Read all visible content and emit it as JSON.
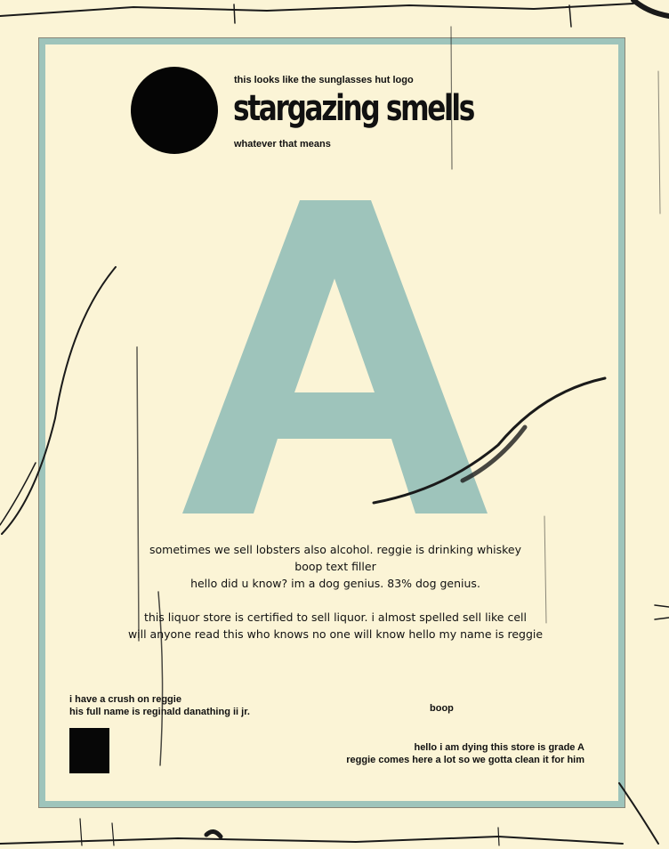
{
  "header": {
    "logo_note": "this looks like the sunglasses hut logo",
    "title": "stargazing smells",
    "subtitle": "whatever that means"
  },
  "big_letter": "A",
  "body": {
    "lines_1": [
      "sometimes we sell lobsters also alcohol. reggie is drinking whiskey",
      "boop text filler",
      "hello did u know? im a dog genius. 83% dog genius."
    ],
    "lines_2": [
      "this liquor store is certified to sell liquor. i almost spelled sell like cell",
      "will anyone read this who knows no one will know hello my name is reggie"
    ]
  },
  "footer": {
    "left_lines": [
      "i have a crush on reggie",
      "his full name is reginald danathing ii jr."
    ],
    "middle": "boop",
    "right_lines": [
      "hello i am dying this store is grade A",
      "reggie comes here a lot so we gotta clean it for him"
    ]
  },
  "colors": {
    "paper": "#fbf4d6",
    "accent": "#9ec4bb",
    "ink": "#111111"
  }
}
